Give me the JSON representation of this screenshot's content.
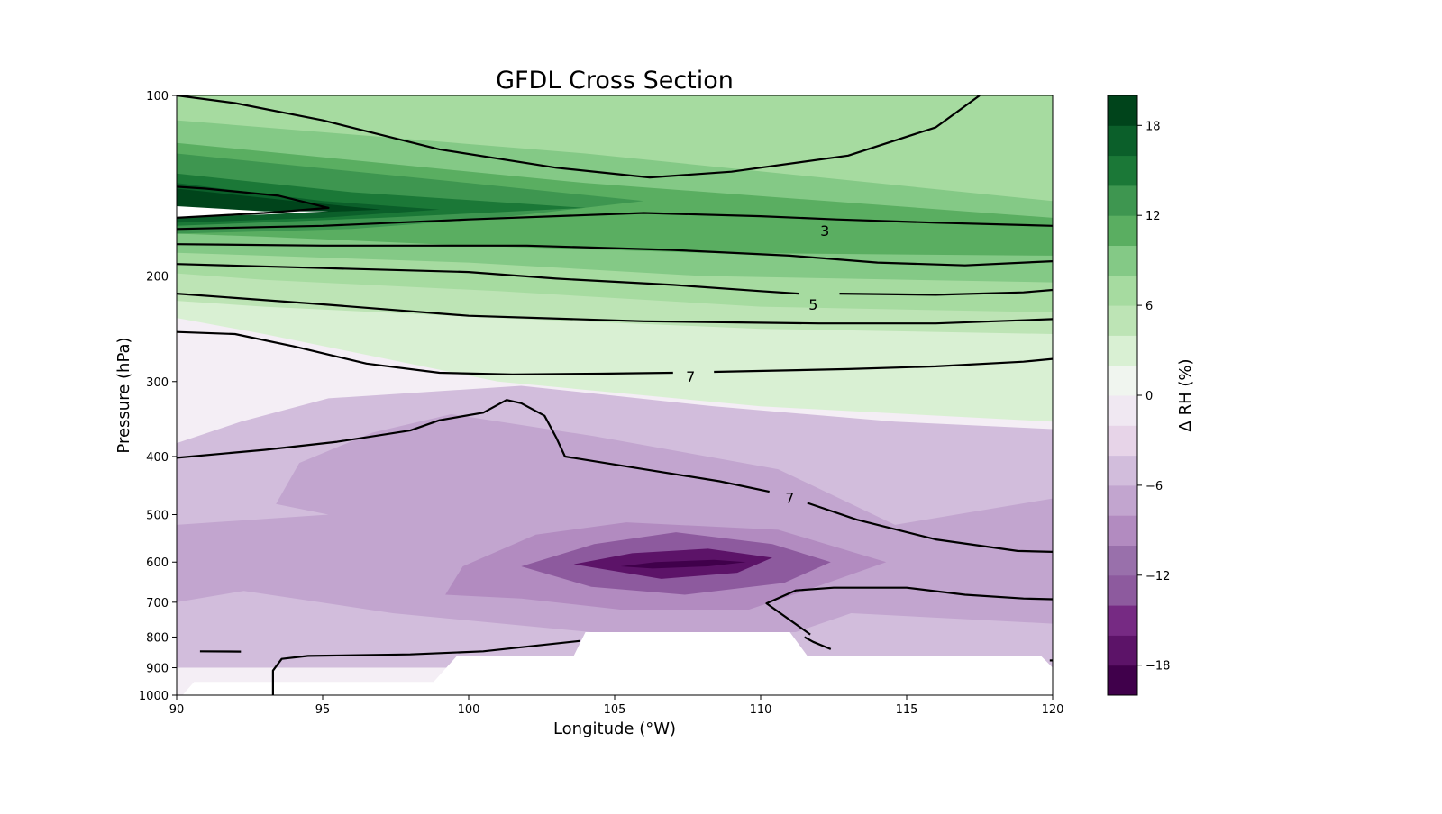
{
  "chart_data": {
    "type": "contour",
    "title": "GFDL Cross Section",
    "xlabel": "Longitude (°W)",
    "ylabel": "Pressure (hPa)",
    "xlim": [
      90,
      120
    ],
    "ylim": [
      1000,
      100
    ],
    "yscale": "log",
    "x_ticks": [
      "90",
      "95",
      "100",
      "105",
      "110",
      "115",
      "120"
    ],
    "y_ticks": [
      "100",
      "200",
      "300",
      "400",
      "500",
      "600",
      "700",
      "800",
      "900",
      "1000"
    ],
    "colorbar": {
      "label": "Δ RH (%)",
      "min": -20,
      "max": 20,
      "step": 2,
      "ticks": [
        "18",
        "12",
        "6",
        "0",
        "−6",
        "−12",
        "−18"
      ],
      "colormap": "PRGn",
      "colors": [
        "#40004b",
        "#5c1368",
        "#762a83",
        "#8d5a9e",
        "#9970ab",
        "#b28bc0",
        "#c2a5cf",
        "#d2bddc",
        "#e7d4e8",
        "#f0e8f2",
        "#f0f5ef",
        "#d9f0d3",
        "#bde4b5",
        "#a6dba0",
        "#84c986",
        "#5aae61",
        "#3e9650",
        "#1b7837",
        "#0b5f2a",
        "#00441b"
      ]
    },
    "fill_regions": [
      {
        "level": -18,
        "points": [
          [
            105.2,
            610
          ],
          [
            106.4,
            600
          ],
          [
            108.4,
            595
          ],
          [
            109.5,
            600
          ],
          [
            108.2,
            610
          ],
          [
            106.3,
            615
          ]
        ]
      },
      {
        "level": -16,
        "points": [
          [
            103.6,
            605
          ],
          [
            105.6,
            580
          ],
          [
            108.2,
            570
          ],
          [
            110.4,
            590
          ],
          [
            109.2,
            625
          ],
          [
            106.6,
            640
          ]
        ]
      },
      {
        "level": -12,
        "points": [
          [
            101.8,
            610
          ],
          [
            104.3,
            560
          ],
          [
            107.1,
            535
          ],
          [
            110.4,
            560
          ],
          [
            112.4,
            600
          ],
          [
            110.8,
            650
          ],
          [
            107.4,
            680
          ],
          [
            104.2,
            660
          ]
        ]
      },
      {
        "level": -8,
        "points": [
          [
            99.8,
            610
          ],
          [
            102.3,
            540
          ],
          [
            105.4,
            515
          ],
          [
            110.6,
            530
          ],
          [
            114.3,
            600
          ],
          [
            111.9,
            660
          ],
          [
            109.6,
            720
          ],
          [
            105.2,
            720
          ],
          [
            101.8,
            690
          ],
          [
            99.2,
            680
          ]
        ]
      },
      {
        "level": -6,
        "points": [
          [
            94.2,
            410
          ],
          [
            96.7,
            365
          ],
          [
            99.4,
            340
          ],
          [
            104.3,
            370
          ],
          [
            110.6,
            420
          ],
          [
            114.6,
            520
          ],
          [
            120,
            470
          ],
          [
            120,
            760
          ],
          [
            113.1,
            730
          ],
          [
            111.2,
            785
          ],
          [
            104.2,
            785
          ],
          [
            97.4,
            730
          ],
          [
            92.3,
            670
          ],
          [
            90,
            700
          ],
          [
            90,
            520
          ],
          [
            95.2,
            500
          ],
          [
            93.4,
            480
          ]
        ]
      },
      {
        "level": -4,
        "points": [
          [
            90,
            380
          ],
          [
            92.2,
            350
          ],
          [
            95.2,
            320
          ],
          [
            101.8,
            305
          ],
          [
            108.4,
            330
          ],
          [
            114.6,
            350
          ],
          [
            120,
            360
          ],
          [
            120,
            900
          ],
          [
            90,
            900
          ]
        ]
      }
    ],
    "fill_regions_positive": [
      {
        "level": 2,
        "points": [
          [
            90,
            100
          ],
          [
            120,
            100
          ],
          [
            120,
            350
          ],
          [
            110,
            330
          ],
          [
            101,
            300
          ],
          [
            93,
            250
          ],
          [
            90,
            235
          ]
        ]
      },
      {
        "level": 4,
        "points": [
          [
            90,
            100
          ],
          [
            120,
            100
          ],
          [
            120,
            250
          ],
          [
            110,
            245
          ],
          [
            101,
            235
          ],
          [
            93,
            225
          ],
          [
            90,
            220
          ]
        ]
      },
      {
        "level": 6,
        "points": [
          [
            90,
            100
          ],
          [
            120,
            100
          ],
          [
            120,
            230
          ],
          [
            110,
            225
          ],
          [
            101,
            212
          ],
          [
            93,
            203
          ],
          [
            90,
            198
          ]
        ]
      },
      {
        "level": 8,
        "points": [
          [
            90,
            110
          ],
          [
            104,
            125
          ],
          [
            120,
            150
          ],
          [
            120,
            205
          ],
          [
            108,
            200
          ],
          [
            100,
            190
          ],
          [
            93,
            185
          ],
          [
            90,
            183
          ]
        ]
      },
      {
        "level": 10,
        "points": [
          [
            90,
            120
          ],
          [
            104,
            140
          ],
          [
            120,
            160
          ],
          [
            120,
            185
          ],
          [
            108,
            183
          ],
          [
            100,
            178
          ],
          [
            93,
            172
          ],
          [
            90,
            170
          ]
        ]
      },
      {
        "level": 12,
        "points": [
          [
            90,
            125
          ],
          [
            100,
            140
          ],
          [
            106,
            150
          ],
          [
            101,
            160
          ],
          [
            96,
            167
          ],
          [
            90,
            170
          ]
        ]
      },
      {
        "level": 14,
        "points": [
          [
            90,
            135
          ],
          [
            96,
            145
          ],
          [
            104,
            154
          ],
          [
            97,
            160
          ],
          [
            90,
            165
          ]
        ]
      },
      {
        "level": 16,
        "points": [
          [
            90,
            140
          ],
          [
            95,
            150
          ],
          [
            99,
            155
          ],
          [
            95,
            160
          ],
          [
            90,
            163
          ]
        ]
      },
      {
        "level": 18,
        "points": [
          [
            90,
            143
          ],
          [
            94,
            150
          ],
          [
            97,
            155
          ],
          [
            93,
            158
          ],
          [
            90,
            160
          ]
        ]
      }
    ],
    "contour_labels": [
      {
        "text": "3",
        "x": 112.2,
        "p": 168
      },
      {
        "text": "5",
        "x": 111.8,
        "p": 223
      },
      {
        "text": "7",
        "x": 107.6,
        "p": 294
      },
      {
        "text": "7",
        "x": 111.0,
        "p": 468
      }
    ],
    "contour_lines": [
      [
        [
          90,
          100
        ],
        [
          92,
          103
        ],
        [
          95,
          110
        ],
        [
          99,
          123
        ],
        [
          103,
          132
        ],
        [
          106.2,
          137
        ],
        [
          109,
          134
        ],
        [
          113,
          126
        ],
        [
          116,
          113
        ],
        [
          117.5,
          100
        ]
      ],
      [
        [
          90,
          142
        ],
        [
          91,
          143
        ],
        [
          93.5,
          147
        ],
        [
          95.2,
          154
        ],
        [
          93,
          157
        ],
        [
          90,
          160
        ]
      ],
      [
        [
          90,
          167
        ],
        [
          95,
          165
        ],
        [
          100,
          161
        ],
        [
          106,
          157
        ],
        [
          110,
          159
        ],
        [
          112.6,
          161
        ],
        [
          116,
          163
        ],
        [
          120,
          165
        ]
      ],
      [
        [
          90,
          177
        ],
        [
          95,
          178
        ],
        [
          102,
          178
        ],
        [
          107,
          181
        ],
        [
          111,
          185
        ],
        [
          114,
          190
        ],
        [
          117,
          192
        ],
        [
          120,
          189
        ]
      ],
      [
        [
          90,
          191
        ],
        [
          95,
          194
        ],
        [
          100,
          197
        ],
        [
          103,
          202
        ],
        [
          107,
          207
        ],
        [
          110,
          212
        ],
        [
          111.3,
          214
        ]
      ],
      [
        [
          112.7,
          214
        ],
        [
          116,
          215
        ],
        [
          119,
          213
        ],
        [
          120,
          211
        ]
      ],
      [
        [
          90,
          214
        ],
        [
          95,
          223
        ],
        [
          100,
          233
        ],
        [
          106,
          238
        ],
        [
          112,
          240
        ],
        [
          116,
          240
        ],
        [
          120,
          236
        ]
      ],
      [
        [
          90,
          248
        ],
        [
          92,
          250
        ],
        [
          94,
          262
        ],
        [
          96.5,
          280
        ],
        [
          99,
          290
        ],
        [
          101.5,
          292
        ],
        [
          104.5,
          291
        ],
        [
          107,
          290
        ]
      ],
      [
        [
          108.4,
          289
        ],
        [
          113,
          286
        ],
        [
          116,
          283
        ],
        [
          119,
          278
        ],
        [
          120,
          275
        ]
      ],
      [
        [
          90,
          402
        ],
        [
          93,
          390
        ],
        [
          95.5,
          378
        ],
        [
          98,
          362
        ],
        [
          99,
          348
        ],
        [
          100.5,
          338
        ],
        [
          101.3,
          322
        ],
        [
          101.8,
          326
        ],
        [
          102.6,
          342
        ],
        [
          103,
          372
        ],
        [
          103.3,
          400
        ],
        [
          106,
          420
        ],
        [
          108.6,
          440
        ],
        [
          110.3,
          458
        ]
      ],
      [
        [
          111.6,
          478
        ],
        [
          113.3,
          510
        ],
        [
          116,
          550
        ],
        [
          118.8,
          575
        ],
        [
          120,
          577
        ]
      ],
      [
        [
          111.7,
          792
        ],
        [
          110.2,
          703
        ],
        [
          111.2,
          669
        ],
        [
          112.5,
          662
        ],
        [
          115,
          662
        ],
        [
          117,
          680
        ],
        [
          119,
          690
        ],
        [
          120,
          692
        ]
      ],
      [
        [
          112.4,
          838
        ],
        [
          111.8,
          815
        ],
        [
          111.5,
          800
        ]
      ],
      [
        [
          90.8,
          845
        ],
        [
          92.2,
          846
        ]
      ],
      [
        [
          93.3,
          1000
        ],
        [
          93.3,
          910
        ],
        [
          93.6,
          870
        ],
        [
          94.5,
          860
        ],
        [
          98,
          855
        ],
        [
          100.5,
          845
        ],
        [
          103.8,
          812
        ]
      ],
      [
        [
          119.9,
          875
        ],
        [
          120,
          875
        ]
      ]
    ],
    "white_regions": [
      [
        [
          90.2,
          1000
        ],
        [
          90.6,
          950
        ],
        [
          98.8,
          950
        ],
        [
          99.6,
          860
        ],
        [
          103.6,
          860
        ],
        [
          104,
          785
        ],
        [
          111,
          785
        ],
        [
          111.6,
          860
        ],
        [
          119.6,
          860
        ],
        [
          120,
          900
        ],
        [
          120,
          1000
        ]
      ]
    ],
    "hole_region": [
      [
        90,
        153
      ],
      [
        93,
        156
      ],
      [
        95.2,
        156
      ],
      [
        93,
        158
      ],
      [
        90,
        159.5
      ]
    ]
  }
}
